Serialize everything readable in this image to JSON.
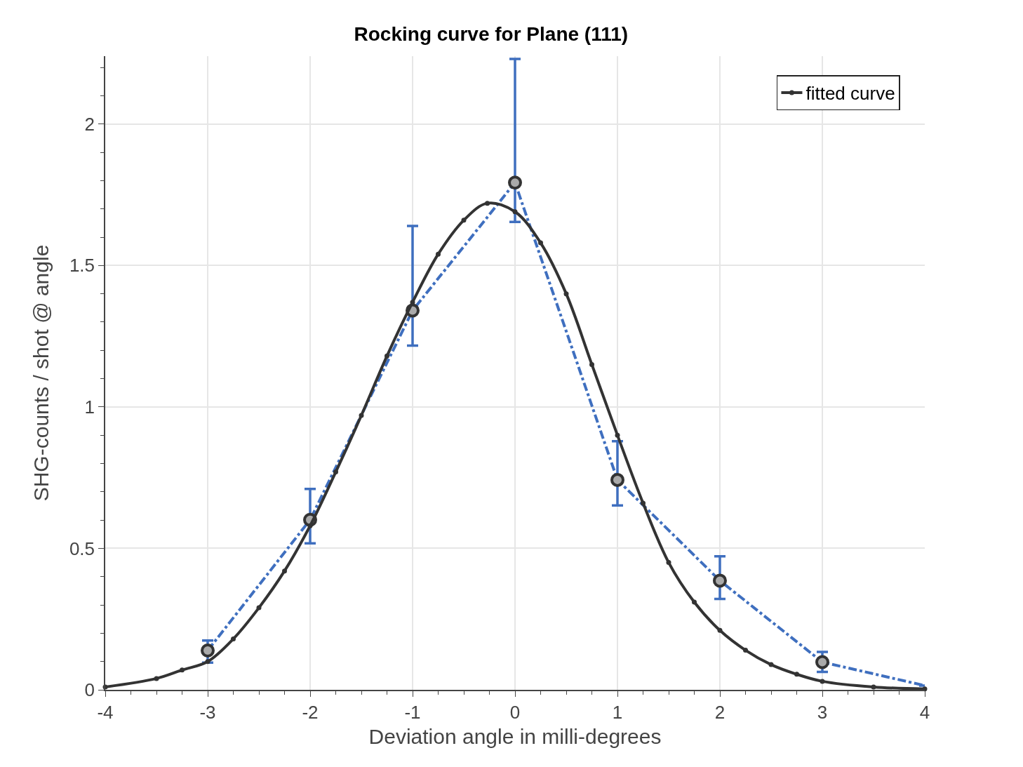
{
  "chart_data": {
    "type": "line",
    "title": "Rocking curve for Plane (111)",
    "xlabel": "Deviation angle in milli-degrees",
    "ylabel": "SHG-counts / shot @ angle",
    "xlim": [
      -4,
      4
    ],
    "ylim": [
      0,
      2.24
    ],
    "xticks": [
      -4,
      {
        "value": -3.75,
        "label": null
      },
      {
        "value": -3.5,
        "label": null
      },
      {
        "value": -3.25,
        "label": null
      },
      -3,
      {
        "value": -2.75,
        "label": null
      },
      {
        "value": -2.5,
        "label": null
      },
      {
        "value": -2.25,
        "label": null
      },
      -2,
      {
        "value": -1.75,
        "label": null
      },
      {
        "value": -1.5,
        "label": null
      },
      {
        "value": -1.25,
        "label": null
      },
      -1,
      {
        "value": -0.75,
        "label": null
      },
      {
        "value": -0.5,
        "label": null
      },
      {
        "value": -0.25,
        "label": null
      },
      0,
      {
        "value": 0.25,
        "label": null
      },
      {
        "value": 0.5,
        "label": null
      },
      {
        "value": 0.75,
        "label": null
      },
      1,
      {
        "value": 1.25,
        "label": null
      },
      {
        "value": 1.5,
        "label": null
      },
      {
        "value": 1.75,
        "label": null
      },
      2,
      {
        "value": 2.25,
        "label": null
      },
      {
        "value": 2.5,
        "label": null
      },
      {
        "value": 2.75,
        "label": null
      },
      3,
      {
        "value": 3.25,
        "label": null
      },
      {
        "value": 3.5,
        "label": null
      },
      {
        "value": 3.75,
        "label": null
      },
      4
    ],
    "yticks": [
      0,
      {
        "value": 0.1,
        "label": null
      },
      {
        "value": 0.2,
        "label": null
      },
      {
        "value": 0.3,
        "label": null
      },
      {
        "value": 0.4,
        "label": null
      },
      0.5,
      {
        "value": 0.6,
        "label": null
      },
      {
        "value": 0.7,
        "label": null
      },
      {
        "value": 0.8,
        "label": null
      },
      {
        "value": 0.9,
        "label": null
      },
      1,
      {
        "value": 1.1,
        "label": null
      },
      {
        "value": 1.2,
        "label": null
      },
      {
        "value": 1.3,
        "label": null
      },
      {
        "value": 1.4,
        "label": null
      },
      1.5,
      {
        "value": 1.6,
        "label": null
      },
      {
        "value": 1.7,
        "label": null
      },
      {
        "value": 1.8,
        "label": null
      },
      {
        "value": 1.9,
        "label": null
      },
      2,
      {
        "value": 2.1,
        "label": null
      },
      {
        "value": 2.2,
        "label": null
      }
    ],
    "grid": true,
    "legend": "top right",
    "series": [
      {
        "color": "#3f6fbf",
        "line_style": "dashed",
        "marker": "none",
        "x": [
          -3,
          -2,
          -1,
          0,
          1,
          2,
          3,
          4
        ],
        "values": [
          0.139,
          0.601,
          1.341,
          1.793,
          0.742,
          0.386,
          0.098,
          0.015
        ],
        "errors": [
          [
            0.096,
            0.174
          ],
          [
            0.518,
            0.71
          ],
          [
            1.217,
            1.64
          ],
          [
            1.654,
            2.23
          ],
          [
            0.652,
            0.879
          ],
          [
            0.321,
            0.472
          ],
          [
            0.063,
            0.134
          ],
          null
        ]
      },
      {
        "type": "scatter",
        "color": "#333333",
        "marker": "circle",
        "x": [
          -3,
          -2,
          -1,
          0,
          1,
          2,
          3
        ],
        "values": [
          0.139,
          0.601,
          1.341,
          1.793,
          0.742,
          0.386,
          0.098
        ]
      },
      {
        "name": "fitted curve",
        "color": "#333333",
        "line_style": "solid",
        "marker": "circle",
        "x": [
          -4,
          -3.5,
          -3.25,
          -3,
          -2.75,
          -2.5,
          -2.25,
          -2,
          -1.75,
          -1.5,
          -1.25,
          -1,
          -0.75,
          -0.5,
          -0.27,
          0,
          0.25,
          0.5,
          0.75,
          1,
          1.25,
          1.5,
          1.75,
          2,
          2.25,
          2.5,
          2.75,
          3,
          3.5,
          4
        ],
        "values": [
          0.01,
          0.04,
          0.07,
          0.1,
          0.18,
          0.29,
          0.42,
          0.58,
          0.77,
          0.97,
          1.18,
          1.37,
          1.54,
          1.66,
          1.72,
          1.69,
          1.58,
          1.4,
          1.15,
          0.9,
          0.66,
          0.45,
          0.31,
          0.21,
          0.14,
          0.089,
          0.055,
          0.03,
          0.01,
          0.003
        ]
      }
    ]
  }
}
